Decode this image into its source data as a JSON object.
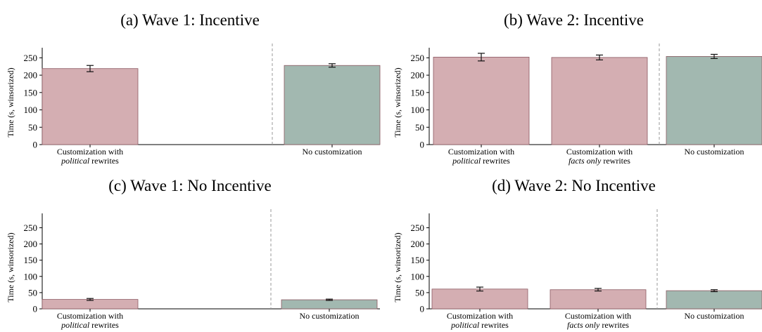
{
  "chart_data": [
    {
      "type": "bar",
      "title": "(a) Wave 1: Incentive",
      "ylabel": "Time (s, winsorized)",
      "ylim": [
        0,
        275
      ],
      "yticks": [
        0,
        50,
        100,
        150,
        200,
        250
      ],
      "categories": [
        {
          "pre": "Customization with",
          "em": "political",
          "post": " rewrites"
        },
        {
          "pre": "No customization",
          "em": "",
          "post": ""
        }
      ],
      "values": [
        219,
        228
      ],
      "errors": [
        9,
        5
      ],
      "colors": [
        "#d4aeb2",
        "#a2b8b0"
      ],
      "separator_after": 0,
      "grid": false
    },
    {
      "type": "bar",
      "title": "(b) Wave 2: Incentive",
      "ylabel": "Time (s, winsorized)",
      "ylim": [
        0,
        275
      ],
      "yticks": [
        0,
        50,
        100,
        150,
        200,
        250
      ],
      "categories": [
        {
          "pre": "Customization with",
          "em": "political",
          "post": " rewrites"
        },
        {
          "pre": "Customization with",
          "em": "facts only",
          "post": " rewrites"
        },
        {
          "pre": "No customization",
          "em": "",
          "post": ""
        }
      ],
      "values": [
        252,
        251,
        254
      ],
      "errors": [
        11,
        7,
        6
      ],
      "colors": [
        "#d4aeb2",
        "#d4aeb2",
        "#a2b8b0"
      ],
      "separator_after": 1,
      "grid": false
    },
    {
      "type": "bar",
      "title": "(c) Wave 1: No Incentive",
      "ylabel": "Time (s, winsorized)",
      "ylim": [
        0,
        290
      ],
      "yticks": [
        0,
        50,
        100,
        150,
        200,
        250
      ],
      "categories": [
        {
          "pre": "Customization with",
          "em": "political",
          "post": " rewrites"
        },
        {
          "pre": "No customization",
          "em": "",
          "post": ""
        }
      ],
      "values": [
        29,
        28
      ],
      "errors": [
        3,
        2
      ],
      "colors": [
        "#d4aeb2",
        "#a2b8b0"
      ],
      "separator_after": 0,
      "grid": false
    },
    {
      "type": "bar",
      "title": "(d) Wave 2: No Incentive",
      "ylabel": "Time (s, winsorized)",
      "ylim": [
        0,
        290
      ],
      "yticks": [
        0,
        50,
        100,
        150,
        200,
        250
      ],
      "categories": [
        {
          "pre": "Customization with",
          "em": "political",
          "post": " rewrites"
        },
        {
          "pre": "Customization with",
          "em": "facts only",
          "post": " rewrites"
        },
        {
          "pre": "No customization",
          "em": "",
          "post": ""
        }
      ],
      "values": [
        61,
        59,
        56
      ],
      "errors": [
        6,
        4,
        3
      ],
      "colors": [
        "#d4aeb2",
        "#d4aeb2",
        "#a2b8b0"
      ],
      "separator_after": 1,
      "grid": false
    }
  ]
}
